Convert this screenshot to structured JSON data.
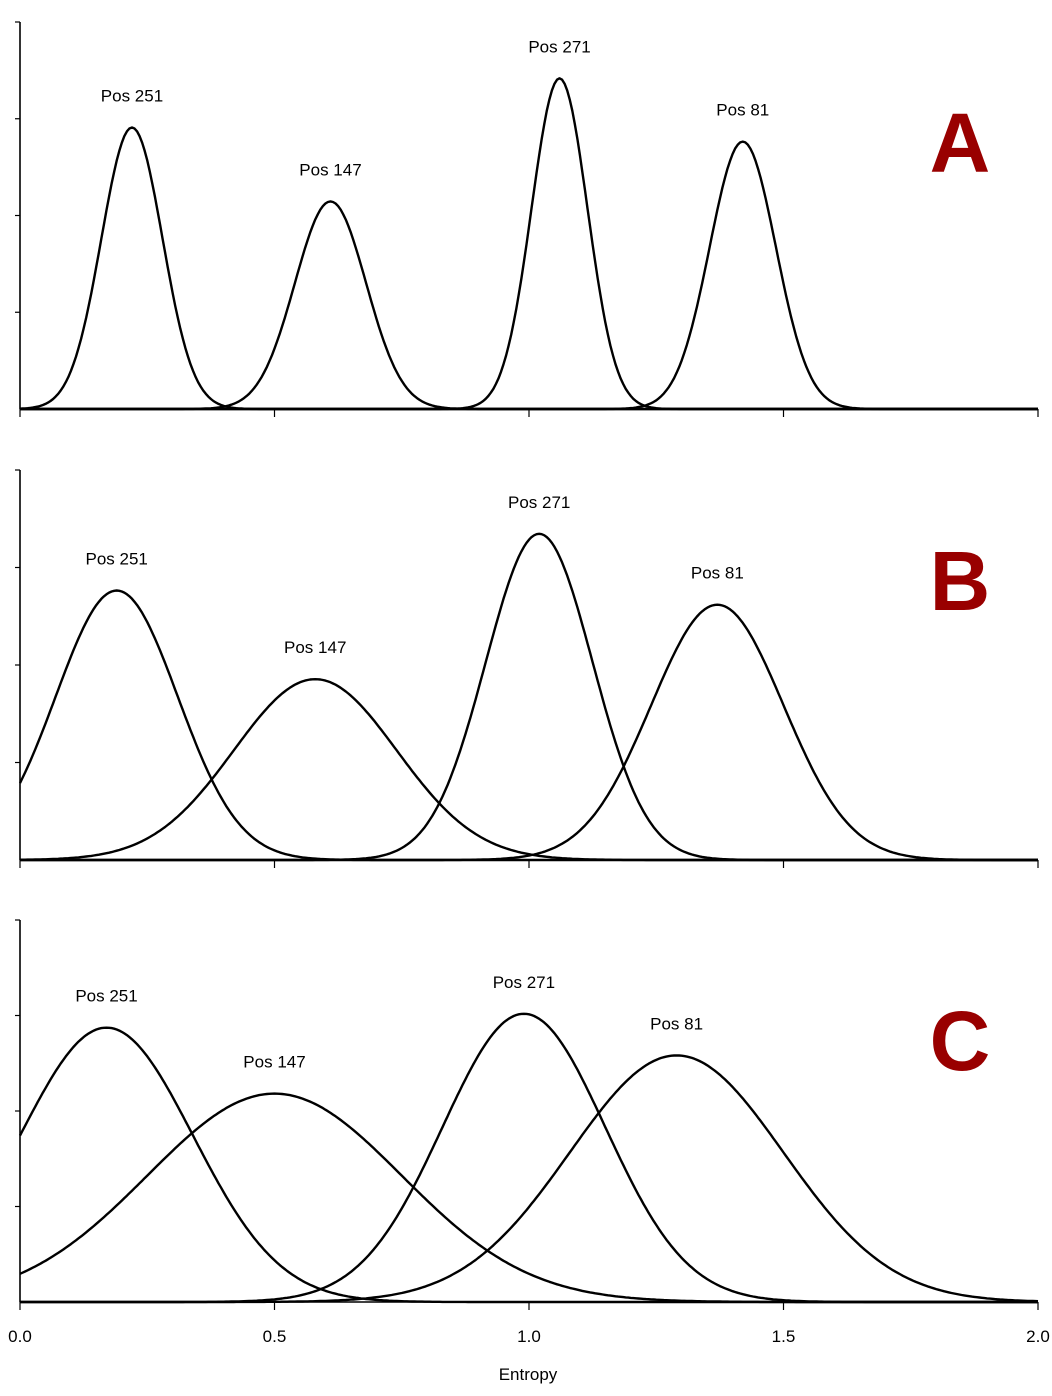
{
  "chart_data": {
    "type": "line",
    "xlabel": "Entropy",
    "xlim": [
      0.0,
      2.0
    ],
    "x_ticks": [
      "0.0",
      "0.5",
      "1.0",
      "1.5",
      "2.0"
    ],
    "letter_color": "#990000",
    "panels": [
      {
        "label": "A",
        "ylim": [
          0,
          1.1
        ],
        "series": [
          {
            "name": "Pos 251",
            "mean": 0.22,
            "sd": 0.06,
            "peak": 0.8
          },
          {
            "name": "Pos 147",
            "mean": 0.61,
            "sd": 0.07,
            "peak": 0.59
          },
          {
            "name": "Pos 271",
            "mean": 1.06,
            "sd": 0.055,
            "peak": 0.94
          },
          {
            "name": "Pos 81",
            "mean": 1.42,
            "sd": 0.065,
            "peak": 0.76
          }
        ]
      },
      {
        "label": "B",
        "ylim": [
          0,
          1.1
        ],
        "series": [
          {
            "name": "Pos 251",
            "mean": 0.19,
            "sd": 0.12,
            "peak": 0.76
          },
          {
            "name": "Pos 147",
            "mean": 0.58,
            "sd": 0.16,
            "peak": 0.51
          },
          {
            "name": "Pos 271",
            "mean": 1.02,
            "sd": 0.105,
            "peak": 0.92
          },
          {
            "name": "Pos 81",
            "mean": 1.37,
            "sd": 0.13,
            "peak": 0.72
          }
        ]
      },
      {
        "label": "C",
        "ylim": [
          0,
          1.1
        ],
        "series": [
          {
            "name": "Pos 251",
            "mean": 0.17,
            "sd": 0.17,
            "peak": 0.79
          },
          {
            "name": "Pos 147",
            "mean": 0.5,
            "sd": 0.25,
            "peak": 0.6
          },
          {
            "name": "Pos 271",
            "mean": 0.99,
            "sd": 0.16,
            "peak": 0.83
          },
          {
            "name": "Pos 81",
            "mean": 1.29,
            "sd": 0.21,
            "peak": 0.71
          }
        ]
      }
    ]
  }
}
